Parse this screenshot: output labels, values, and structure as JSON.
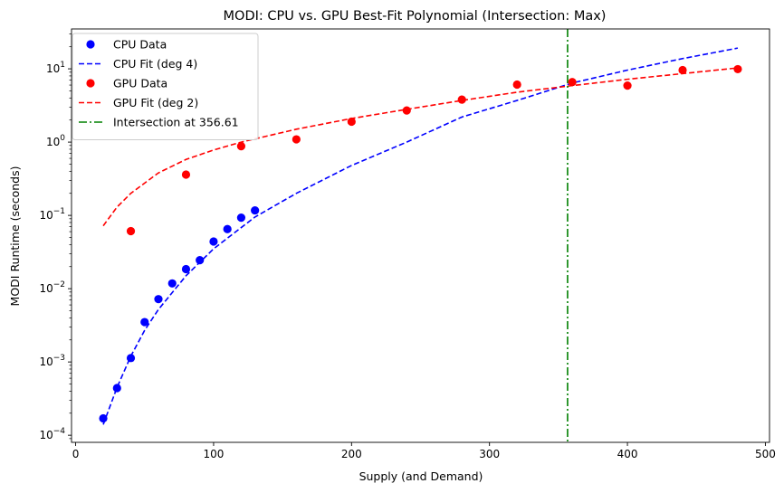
{
  "chart_data": {
    "type": "scatter",
    "title": "MODI: CPU vs. GPU Best-Fit Polynomial (Intersection: Max)",
    "xlabel": "Supply (and Demand)",
    "ylabel": "MODI Runtime (seconds)",
    "xlim": [
      -3,
      503
    ],
    "ylim": [
      8e-05,
      35
    ],
    "yscale": "log",
    "x_ticks": [
      0,
      100,
      200,
      300,
      400,
      500
    ],
    "x_tick_labels": [
      "0",
      "100",
      "200",
      "300",
      "400",
      "500"
    ],
    "y_ticks": [
      0.0001,
      0.001,
      0.01,
      0.1,
      1,
      10
    ],
    "y_tick_labels": [
      {
        "base": "10",
        "exp": "−4"
      },
      {
        "base": "10",
        "exp": "−3"
      },
      {
        "base": "10",
        "exp": "−2"
      },
      {
        "base": "10",
        "exp": "−1"
      },
      {
        "base": "10",
        "exp": "0"
      },
      {
        "base": "10",
        "exp": "1"
      }
    ],
    "grid": false,
    "legend_position": "upper-left",
    "series": [
      {
        "name": "CPU Data",
        "kind": "points",
        "color": "#0000ff",
        "x": [
          20,
          30,
          40,
          50,
          60,
          70,
          80,
          90,
          100,
          110,
          120,
          130
        ],
        "y": [
          0.00017,
          0.00044,
          0.00113,
          0.0035,
          0.0072,
          0.0118,
          0.0185,
          0.0245,
          0.044,
          0.065,
          0.093,
          0.117
        ]
      },
      {
        "name": "CPU Fit (deg 4)",
        "kind": "line",
        "style": "dashed",
        "color": "#0000ff",
        "x": [
          20,
          30,
          40,
          50,
          60,
          80,
          100,
          130,
          160,
          200,
          240,
          280,
          320,
          360,
          400,
          440,
          480
        ],
        "y": [
          0.00014,
          0.00045,
          0.0012,
          0.0027,
          0.0052,
          0.015,
          0.035,
          0.095,
          0.2,
          0.48,
          1.0,
          2.2,
          3.7,
          6.4,
          9.6,
          13.8,
          19.2
        ]
      },
      {
        "name": "GPU Data",
        "kind": "points",
        "color": "#ff0000",
        "x": [
          40,
          80,
          120,
          160,
          200,
          240,
          280,
          320,
          360,
          400,
          440,
          480
        ],
        "y": [
          0.061,
          0.36,
          0.88,
          1.09,
          1.9,
          2.7,
          3.8,
          6.1,
          6.6,
          5.9,
          9.6,
          9.9
        ]
      },
      {
        "name": "GPU Fit (deg 2)",
        "kind": "line",
        "style": "dashed",
        "color": "#ff0000",
        "x": [
          20,
          30,
          40,
          60,
          80,
          100,
          120,
          160,
          200,
          240,
          280,
          320,
          360,
          400,
          440,
          480
        ],
        "y": [
          0.072,
          0.13,
          0.2,
          0.38,
          0.58,
          0.78,
          1.0,
          1.5,
          2.1,
          2.8,
          3.7,
          4.8,
          5.9,
          7.2,
          8.6,
          10.3
        ]
      },
      {
        "name": "Intersection at 356.61",
        "kind": "vline",
        "style": "dashdot",
        "color": "#008000",
        "x": 356.61
      }
    ]
  }
}
